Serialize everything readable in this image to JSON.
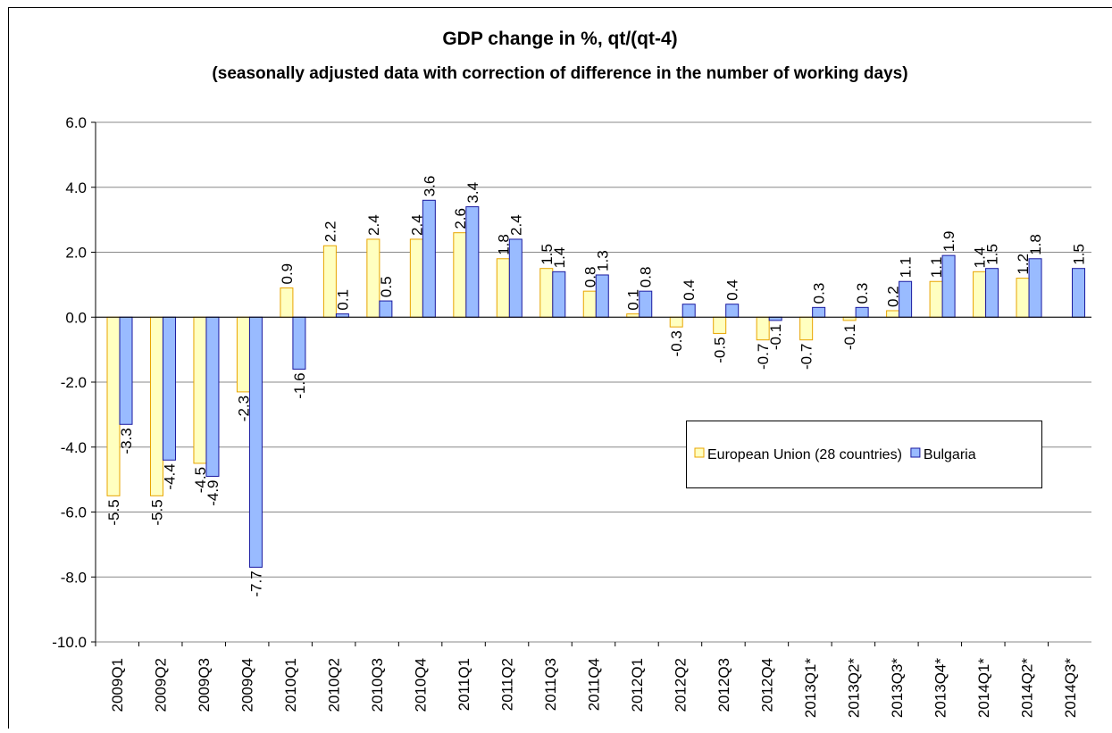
{
  "chart_data": {
    "type": "bar",
    "title": "GDP change in %, qt/(qt-4)",
    "subtitle": "(seasonally adjusted data with correction of difference in the number of working days)",
    "categories": [
      "2009Q1",
      "2009Q2",
      "2009Q3",
      "2009Q4",
      "2010Q1",
      "2010Q2",
      "2010Q3",
      "2010Q4",
      "2011Q1",
      "2011Q2",
      "2011Q3",
      "2011Q4",
      "2012Q1",
      "2012Q2",
      "2012Q3",
      "2012Q4",
      "2013Q1*",
      "2013Q2*",
      "2013Q3*",
      "2013Q4*",
      "2014Q1*",
      "2014Q2*",
      "2014Q3*"
    ],
    "series": [
      {
        "name": "European Union (28 countries)",
        "color": "#ffffc0",
        "stroke": "#e8a400",
        "values": [
          -5.5,
          -5.5,
          -4.5,
          -2.3,
          0.9,
          2.2,
          2.4,
          2.4,
          2.6,
          1.8,
          1.5,
          0.8,
          0.1,
          -0.3,
          -0.5,
          -0.7,
          -0.7,
          -0.1,
          0.2,
          1.1,
          1.4,
          1.2,
          null
        ]
      },
      {
        "name": "Bulgaria",
        "color": "#99bbff",
        "stroke": "#1a1aa0",
        "values": [
          -3.3,
          -4.4,
          -4.9,
          -7.7,
          -1.6,
          0.1,
          0.5,
          3.6,
          3.4,
          2.4,
          1.4,
          1.3,
          0.8,
          0.4,
          0.4,
          -0.1,
          0.3,
          0.3,
          1.1,
          1.9,
          1.5,
          1.8,
          1.5
        ]
      }
    ],
    "ylim": [
      -10,
      6
    ],
    "yticks": [
      {
        "value": -10,
        "label": "-10.0"
      },
      {
        "value": -8,
        "label": "-8.0"
      },
      {
        "value": -6,
        "label": "-6.0"
      },
      {
        "value": -4,
        "label": "-4.0"
      },
      {
        "value": -2,
        "label": "-2.0"
      },
      {
        "value": 0,
        "label": "0.0"
      },
      {
        "value": 2,
        "label": "2.0"
      },
      {
        "value": 4,
        "label": "4.0"
      },
      {
        "value": 6,
        "label": "6.0"
      }
    ],
    "grid": true,
    "legend": "right"
  }
}
